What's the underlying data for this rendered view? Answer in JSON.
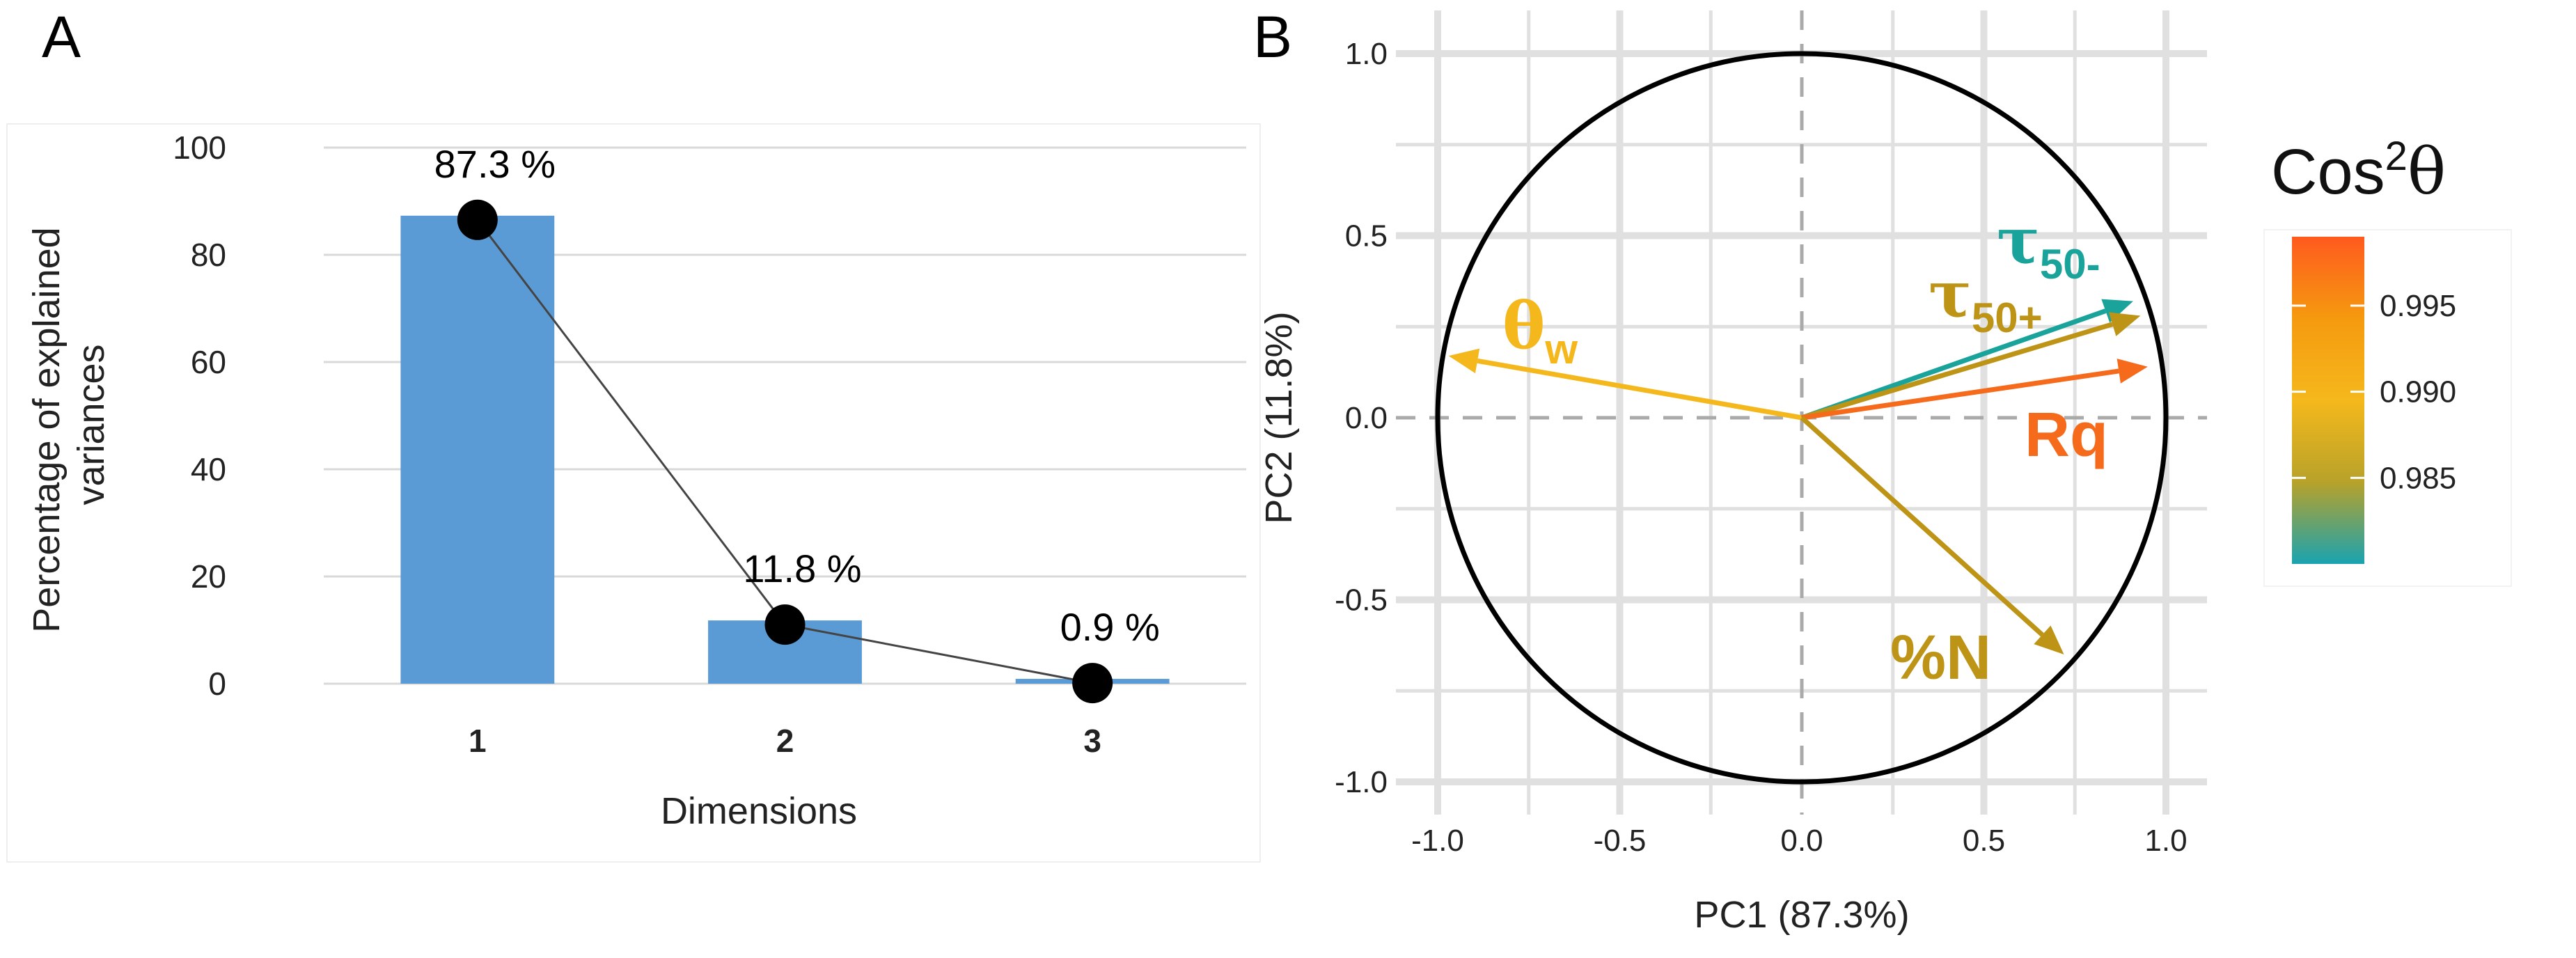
{
  "panels": {
    "a_letter": "A",
    "b_letter": "B"
  },
  "chart_data": [
    {
      "type": "bar",
      "panel": "A",
      "categories": [
        "1",
        "2",
        "3"
      ],
      "values": [
        87.3,
        11.8,
        0.9
      ],
      "data_labels": [
        "87.3 %",
        "11.8 %",
        "0.9 %"
      ],
      "overlay": "line with circular markers",
      "xlabel": "Dimensions",
      "ylabel_lines": [
        "Percentage of explained",
        "variances"
      ],
      "ylim": [
        0,
        100
      ],
      "yticks": [
        0,
        20,
        40,
        60,
        80,
        100
      ],
      "grid": true,
      "colors": {
        "bar": "#5b9bd5",
        "marker": "#000000",
        "line": "#444444",
        "grid": "#d9d9d9"
      }
    },
    {
      "type": "scatter",
      "subtype": "PCA correlation circle",
      "panel": "B",
      "xlabel": "PC1 (87.3%)",
      "ylabel": "PC2 (11.8%)",
      "xlim": [
        -1.0,
        1.0
      ],
      "ylim": [
        -1.0,
        1.0
      ],
      "xticks": [
        "-1.0",
        "-0.5",
        "0.0",
        "0.5",
        "1.0"
      ],
      "yticks": [
        "-1.0",
        "-0.5",
        "0.0",
        "0.5",
        "1.0"
      ],
      "grid": true,
      "circle_radius": 1.0,
      "vectors": [
        {
          "label_main": "θ",
          "label_sub": "w",
          "x": -0.97,
          "y": 0.17,
          "cos2": 0.9915,
          "color": "#f5b81c"
        },
        {
          "label_main": "τ",
          "label_sub": "50-",
          "x": 0.91,
          "y": 0.32,
          "cos2": 0.9815,
          "color": "#1aa39a"
        },
        {
          "label_main": "τ",
          "label_sub": "50+",
          "x": 0.93,
          "y": 0.28,
          "cos2": 0.9875,
          "color": "#bd9415"
        },
        {
          "label_main": "Rq",
          "label_sub": "",
          "x": 0.95,
          "y": 0.14,
          "cos2": 0.998,
          "color": "#f66a1c"
        },
        {
          "label_main": "%N",
          "label_sub": "",
          "x": 0.72,
          "y": -0.65,
          "cos2": 0.9875,
          "color": "#bd9415"
        }
      ],
      "legend": {
        "title_main": "Cos",
        "title_sup": "2",
        "title_theta": "θ",
        "ticks": [
          0.995,
          0.99,
          0.985
        ],
        "tick_labels": [
          "0.995",
          "0.990",
          "0.985"
        ],
        "range": [
          0.98,
          0.999
        ],
        "colors": [
          "#1aa3b0",
          "#b7a22a",
          "#f5b81c",
          "#f59a0f",
          "#ff5a1e"
        ],
        "placement": "right"
      }
    }
  ]
}
